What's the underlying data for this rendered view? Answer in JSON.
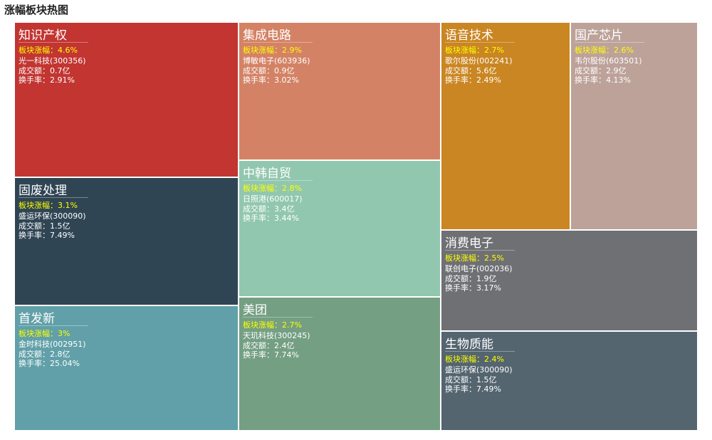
{
  "title": "涨幅板块热图",
  "chart_data": {
    "type": "treemap",
    "title": "涨幅板块热图",
    "labels": {
      "change": "板块涨幅：",
      "amount": "成交额：",
      "turnover": "换手率："
    },
    "items": [
      {
        "name": "知识产权",
        "change": "4.6%",
        "stock": "光一科技(300356)",
        "amount": "0.7亿",
        "turnover": "2.91%",
        "color": "#c23531"
      },
      {
        "name": "固废处理",
        "change": "3.1%",
        "stock": "盛运环保(300090)",
        "amount": "1.5亿",
        "turnover": "7.49%",
        "color": "#2f4554"
      },
      {
        "name": "首发新",
        "change": "3%",
        "stock": "金时科技(002951)",
        "amount": "2.8亿",
        "turnover": "25.04%",
        "color": "#61a0a8"
      },
      {
        "name": "集成电路",
        "change": "2.9%",
        "stock": "博敏电子(603936)",
        "amount": "0.9亿",
        "turnover": "3.02%",
        "color": "#d48265"
      },
      {
        "name": "中韩自贸",
        "change": "2.8%",
        "stock": "日照港(600017)",
        "amount": "3.4亿",
        "turnover": "3.44%",
        "color": "#91c7ae"
      },
      {
        "name": "美团",
        "change": "2.7%",
        "stock": "天玑科技(300245)",
        "amount": "2.4亿",
        "turnover": "7.74%",
        "color": "#749f83"
      },
      {
        "name": "语音技术",
        "change": "2.7%",
        "stock": "歌尔股份(002241)",
        "amount": "5.6亿",
        "turnover": "2.49%",
        "color": "#ca8622"
      },
      {
        "name": "国产芯片",
        "change": "2.6%",
        "stock": "韦尔股份(603501)",
        "amount": "2.9亿",
        "turnover": "4.13%",
        "color": "#bda29a"
      },
      {
        "name": "消费电子",
        "change": "2.5%",
        "stock": "联创电子(002036)",
        "amount": "1.9亿",
        "turnover": "3.17%",
        "color": "#6e7074"
      },
      {
        "name": "生物质能",
        "change": "2.4%",
        "stock": "盛运环保(300090)",
        "amount": "1.5亿",
        "turnover": "7.49%",
        "color": "#546570"
      }
    ]
  }
}
